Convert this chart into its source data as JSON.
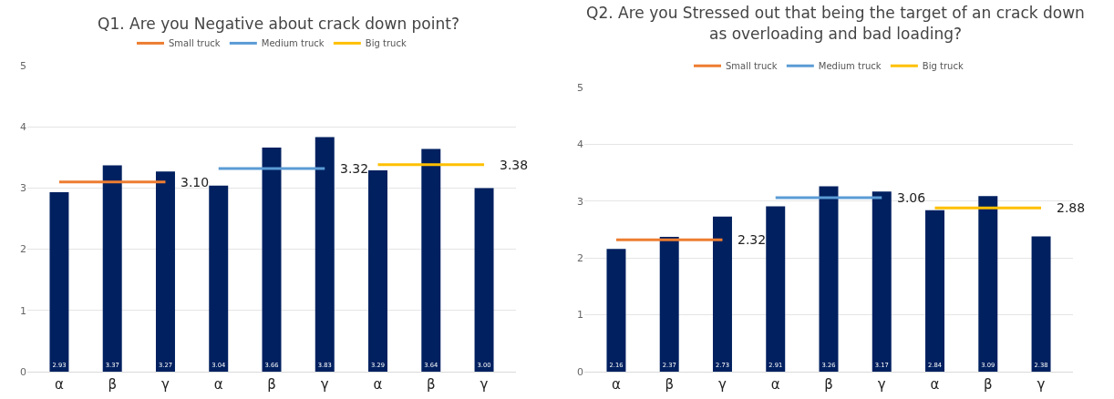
{
  "chart_data": [
    {
      "type": "bar",
      "title": "Q1. Are you Negative about crack down point?",
      "categories": [
        "α",
        "β",
        "γ",
        "α",
        "β",
        "γ",
        "α",
        "β",
        "γ"
      ],
      "ylim": [
        0,
        5
      ],
      "yticks": [
        0,
        1,
        2,
        3,
        4,
        5
      ],
      "grid": "y",
      "legend": "top",
      "series": [
        {
          "color": "#002060",
          "values": [
            2.93,
            3.37,
            3.27,
            3.04,
            3.66,
            3.83,
            3.29,
            3.64,
            3.0
          ],
          "value_labels": [
            "2.93",
            "3.37",
            "3.27",
            "3.04",
            "3.66",
            "3.83",
            "3.29",
            "3.64",
            "3.00"
          ]
        },
        {
          "type": "line",
          "name": "Small truck",
          "color": "#ed7d31",
          "values": [
            3.1,
            3.1,
            3.1,
            null,
            null,
            null,
            null,
            null,
            null
          ],
          "value_labels": [
            null,
            null,
            "3.10",
            null,
            null,
            null,
            null,
            null,
            null
          ]
        },
        {
          "type": "line",
          "name": "Medium truck",
          "color": "#5b9bd5",
          "values": [
            null,
            null,
            null,
            3.32,
            3.32,
            3.32,
            null,
            null,
            null
          ],
          "value_labels": [
            null,
            null,
            null,
            null,
            null,
            "3.32",
            null,
            null,
            null
          ]
        },
        {
          "type": "line",
          "name": "Big truck",
          "color": "#ffc000",
          "values": [
            null,
            null,
            null,
            null,
            null,
            null,
            3.38,
            3.38,
            3.38
          ],
          "value_labels": [
            null,
            null,
            null,
            null,
            null,
            null,
            null,
            null,
            "3.38"
          ]
        }
      ]
    },
    {
      "type": "bar",
      "title": "Q2. Are you Stressed out that being the target of an crack down\nas overloading and bad loading?",
      "categories": [
        "α",
        "β",
        "γ",
        "α",
        "β",
        "γ",
        "α",
        "β",
        "γ"
      ],
      "ylim": [
        0,
        5
      ],
      "yticks": [
        0,
        1,
        2,
        3,
        4,
        5
      ],
      "grid": "y",
      "legend": "top",
      "series": [
        {
          "color": "#002060",
          "values": [
            2.16,
            2.37,
            2.73,
            2.91,
            3.26,
            3.17,
            2.84,
            3.09,
            2.38
          ],
          "value_labels": [
            "2.16",
            "2.37",
            "2.73",
            "2.91",
            "3.26",
            "3.17",
            "2.84",
            "3.09",
            "2.38"
          ]
        },
        {
          "type": "line",
          "name": "Small truck",
          "color": "#ed7d31",
          "values": [
            2.32,
            2.32,
            2.32,
            null,
            null,
            null,
            null,
            null,
            null
          ],
          "value_labels": [
            null,
            null,
            "2.32",
            null,
            null,
            null,
            null,
            null,
            null
          ]
        },
        {
          "type": "line",
          "name": "Medium truck",
          "color": "#5b9bd5",
          "values": [
            null,
            null,
            null,
            3.06,
            3.06,
            3.06,
            null,
            null,
            null
          ],
          "value_labels": [
            null,
            null,
            null,
            null,
            null,
            "3.06",
            null,
            null,
            null
          ]
        },
        {
          "type": "line",
          "name": "Big truck",
          "color": "#ffc000",
          "values": [
            null,
            null,
            null,
            null,
            null,
            null,
            2.88,
            2.88,
            2.88
          ],
          "value_labels": [
            null,
            null,
            null,
            null,
            null,
            null,
            null,
            null,
            "2.88"
          ]
        }
      ]
    }
  ]
}
